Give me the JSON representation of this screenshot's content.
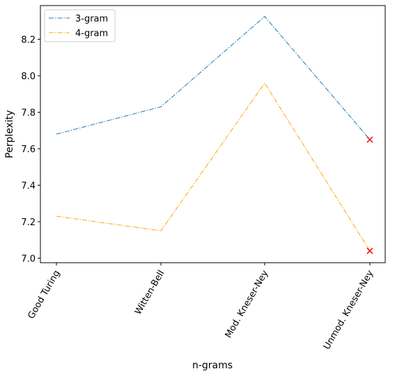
{
  "chart_data": {
    "type": "line",
    "title": "",
    "xlabel": "n-grams",
    "ylabel": "Perplexity",
    "categories": [
      "Good Turing",
      "Witten-Bell",
      "Mod. Kneser-Ney",
      "Unmod. Kneser-Ney"
    ],
    "ylim": [
      6.975,
      8.385
    ],
    "yticks": [
      7.0,
      7.2,
      7.4,
      7.6,
      7.8,
      8.0,
      8.2
    ],
    "ytick_labels": [
      "7.0",
      "7.2",
      "7.4",
      "7.6",
      "7.8",
      "8.0",
      "8.2"
    ],
    "grid": false,
    "legend_position": "top-left",
    "series": [
      {
        "name": "3-gram",
        "values": [
          7.68,
          7.83,
          8.325,
          7.65
        ],
        "color": "#1f77b4",
        "linestyle": "dash-dot"
      },
      {
        "name": "4-gram",
        "values": [
          7.23,
          7.15,
          7.96,
          7.04
        ],
        "color": "#ffa500",
        "linestyle": "dash-dot"
      }
    ],
    "markers": [
      {
        "category": "Unmod. Kneser-Ney",
        "value": 7.65,
        "symbol": "x",
        "color": "#ff0000"
      },
      {
        "category": "Unmod. Kneser-Ney",
        "value": 7.04,
        "symbol": "x",
        "color": "#ff0000"
      }
    ]
  }
}
